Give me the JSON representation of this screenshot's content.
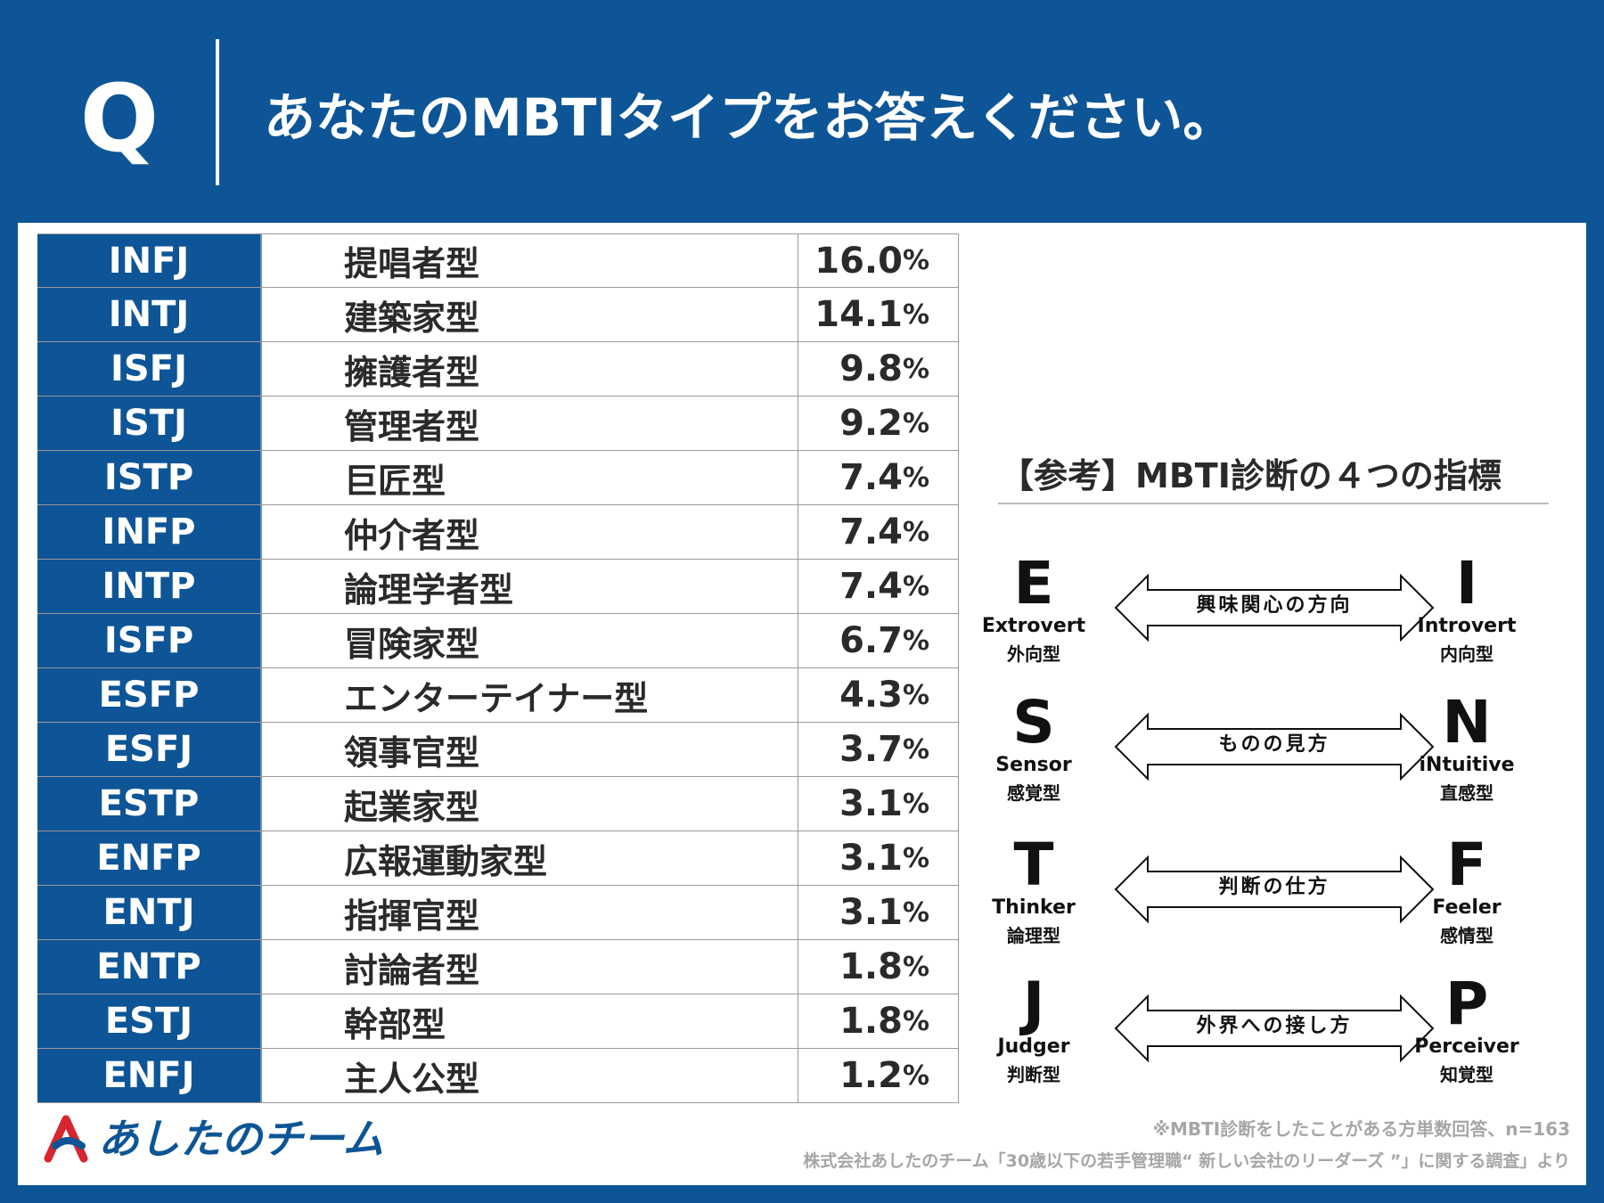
{
  "header": {
    "q_label": "Q",
    "question": "あなたのMBTIタイプをお答えください。"
  },
  "chart_data": {
    "type": "table",
    "columns": [
      "type",
      "name",
      "percent"
    ],
    "unit": "%",
    "rows": [
      {
        "code": "INFJ",
        "name": "提唱者型",
        "value": 16.0,
        "label": "16.0"
      },
      {
        "code": "INTJ",
        "name": "建築家型",
        "value": 14.1,
        "label": "14.1"
      },
      {
        "code": "ISFJ",
        "name": "擁護者型",
        "value": 9.8,
        "label": "9.8"
      },
      {
        "code": "ISTJ",
        "name": "管理者型",
        "value": 9.2,
        "label": "9.2"
      },
      {
        "code": "ISTP",
        "name": "巨匠型",
        "value": 7.4,
        "label": "7.4"
      },
      {
        "code": "INFP",
        "name": "仲介者型",
        "value": 7.4,
        "label": "7.4"
      },
      {
        "code": "INTP",
        "name": "論理学者型",
        "value": 7.4,
        "label": "7.4"
      },
      {
        "code": "ISFP",
        "name": "冒険家型",
        "value": 6.7,
        "label": "6.7"
      },
      {
        "code": "ESFP",
        "name": "エンターテイナー型",
        "value": 4.3,
        "label": "4.3"
      },
      {
        "code": "ESFJ",
        "name": "領事官型",
        "value": 3.7,
        "label": "3.7"
      },
      {
        "code": "ESTP",
        "name": "起業家型",
        "value": 3.1,
        "label": "3.1"
      },
      {
        "code": "ENFP",
        "name": "広報運動家型",
        "value": 3.1,
        "label": "3.1"
      },
      {
        "code": "ENTJ",
        "name": "指揮官型",
        "value": 3.1,
        "label": "3.1"
      },
      {
        "code": "ENTP",
        "name": "討論者型",
        "value": 1.8,
        "label": "1.8"
      },
      {
        "code": "ESTJ",
        "name": "幹部型",
        "value": 1.8,
        "label": "1.8"
      },
      {
        "code": "ENFJ",
        "name": "主人公型",
        "value": 1.2,
        "label": "1.2"
      }
    ]
  },
  "reference": {
    "title": "【参考】MBTI診断の４つの指標",
    "dimensions": [
      {
        "left_letter": "E",
        "left_en": "Extrovert",
        "left_ja": "外向型",
        "label": "興味関心の方向",
        "right_letter": "I",
        "right_en": "Introvert",
        "right_ja": "内向型"
      },
      {
        "left_letter": "S",
        "left_en": "Sensor",
        "left_ja": "感覚型",
        "label": "ものの見方",
        "right_letter": "N",
        "right_en": "iNtuitive",
        "right_ja": "直感型"
      },
      {
        "left_letter": "T",
        "left_en": "Thinker",
        "left_ja": "論理型",
        "label": "判断の仕方",
        "right_letter": "F",
        "right_en": "Feeler",
        "right_ja": "感情型"
      },
      {
        "left_letter": "J",
        "left_en": "Judger",
        "left_ja": "判断型",
        "label": "外界への接し方",
        "right_letter": "P",
        "right_en": "Perceiver",
        "right_ja": "知覚型"
      }
    ]
  },
  "footer": {
    "logo_text": "あしたのチーム",
    "logo_icon": "a-mark-icon",
    "note": "※MBTI診断をしたことがある方単数回答、n=163",
    "source": "株式会社あしたのチーム「30歳以下の若手管理職“ 新しい会社のリーダーズ ”」に関する調査」より"
  },
  "colors": {
    "brand_blue": "#0d5596",
    "logo_red": "#d6262f",
    "text_dark": "#2a2a2a",
    "note_gray": "#a6a6a6"
  }
}
